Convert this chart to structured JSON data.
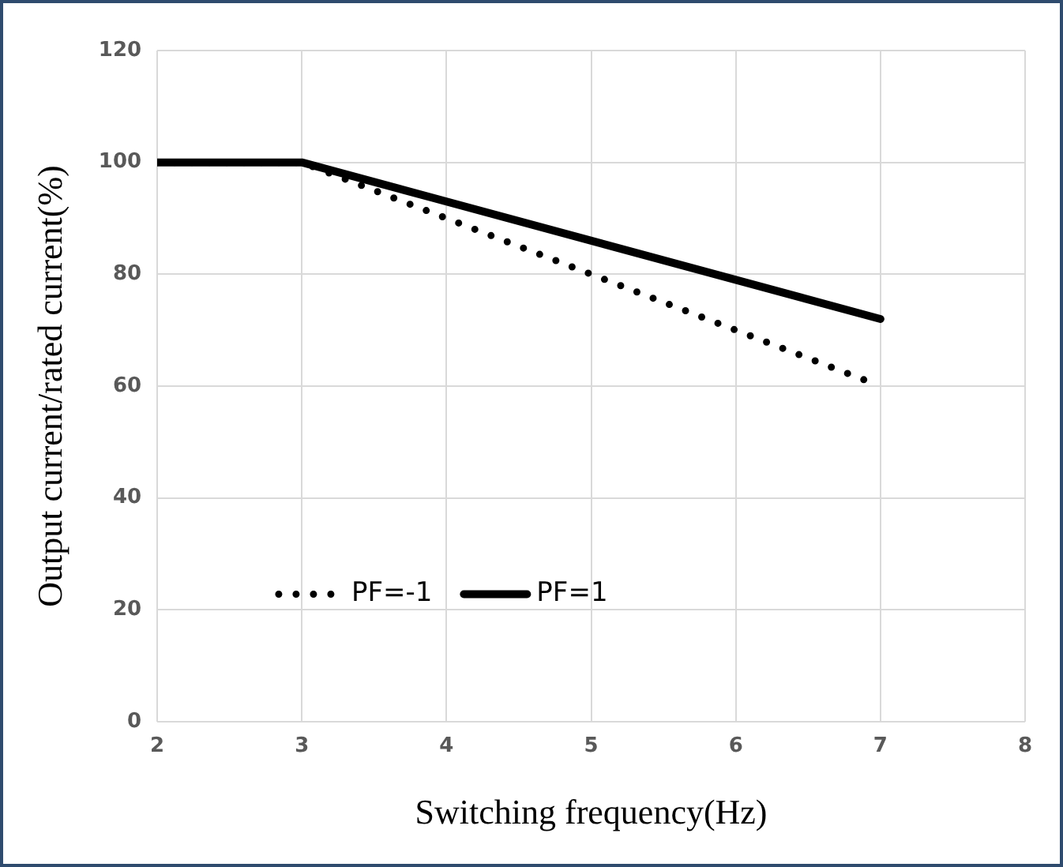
{
  "chart_data": {
    "type": "line",
    "xlabel": "Switching frequency(Hz)",
    "ylabel": "Output current/rated current(%)",
    "xlim": [
      2,
      8
    ],
    "xticks": [
      2,
      3,
      4,
      5,
      6,
      7,
      8
    ],
    "ylim": [
      0,
      120
    ],
    "yticks": [
      0,
      20,
      40,
      60,
      80,
      100,
      120
    ],
    "grid": true,
    "legend": "bottom left",
    "marker": "none",
    "series": [
      {
        "name": "PF=-1",
        "color": "#000000",
        "line_style": "dotted",
        "x": [
          2,
          3,
          6.9
        ],
        "values": [
          100,
          100,
          61
        ]
      },
      {
        "name": "PF=1",
        "color": "#000000",
        "line_style": "solid",
        "x": [
          2,
          3,
          7
        ],
        "values": [
          100,
          100,
          72
        ]
      }
    ]
  }
}
